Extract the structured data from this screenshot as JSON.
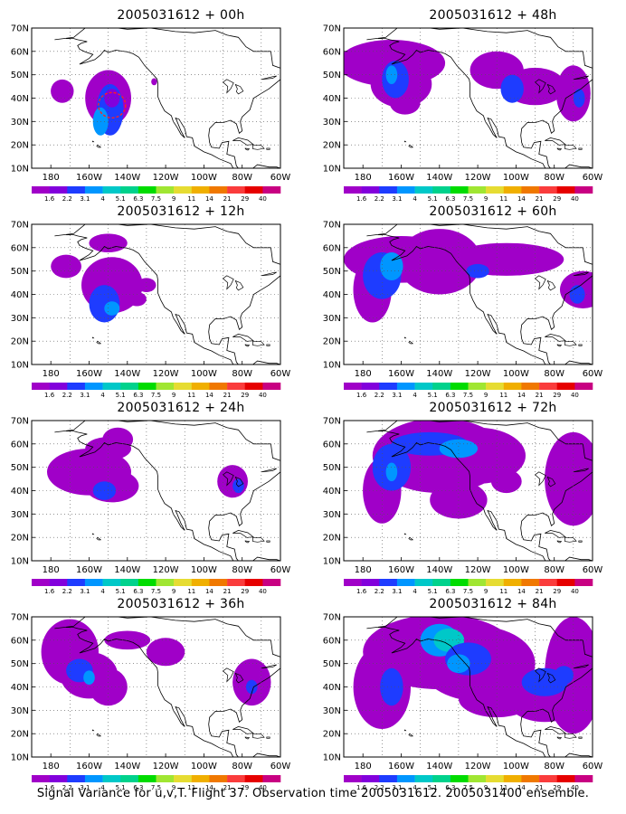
{
  "panels": [
    {
      "title": "2005031612 + 00h"
    },
    {
      "title": "2005031612 + 48h"
    },
    {
      "title": "2005031612 + 12h"
    },
    {
      "title": "2005031612 + 60h"
    },
    {
      "title": "2005031612 + 24h"
    },
    {
      "title": "2005031612 + 72h"
    },
    {
      "title": "2005031612 + 36h"
    },
    {
      "title": "2005031612 + 84h"
    }
  ],
  "lat_labels": [
    "10N",
    "20N",
    "30N",
    "40N",
    "50N",
    "60N",
    "70N"
  ],
  "lon_labels": [
    "180",
    "160W",
    "140W",
    "120W",
    "100W",
    "80W",
    "60W"
  ],
  "colorbar": {
    "labels": [
      "1.6",
      "2.2",
      "3.1",
      "4",
      "5.1",
      "6.3",
      "7.5",
      "9",
      "11",
      "14",
      "21",
      "29",
      "40"
    ],
    "colors": [
      "#a000c8",
      "#8200dc",
      "#1e3cff",
      "#0096ff",
      "#00c8c8",
      "#00d28c",
      "#00dc00",
      "#a0e632",
      "#e6dc32",
      "#f0af00",
      "#f07800",
      "#fa3c3c",
      "#e60000",
      "#c80082"
    ]
  },
  "footer": "Signal Variance for u,v,T. Flight 37. Observation time 2005031612. 2005031400 ensemble."
}
